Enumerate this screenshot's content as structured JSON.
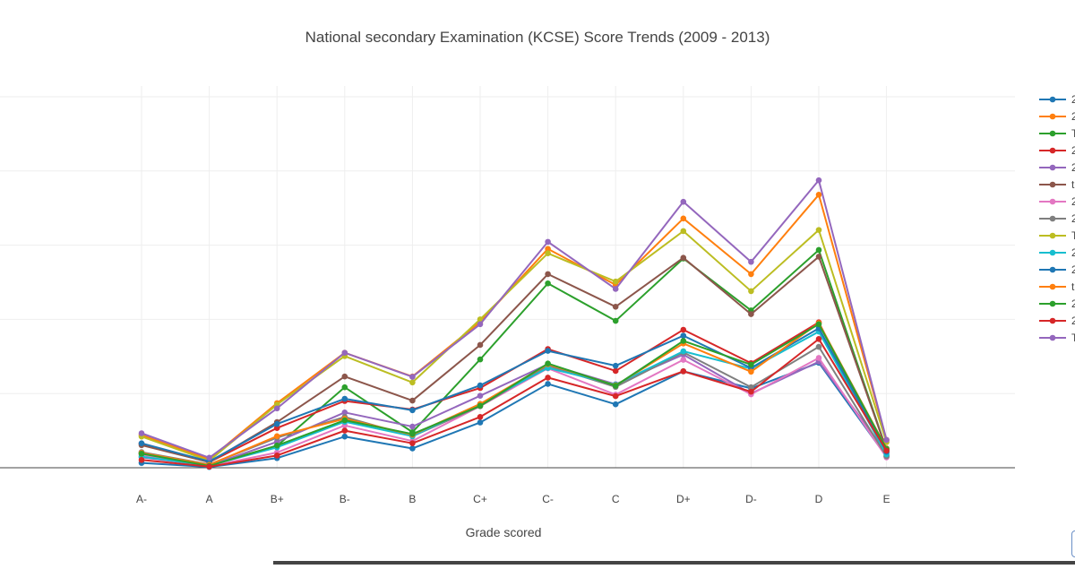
{
  "chart_data": {
    "type": "line",
    "title": "National secondary Examination (KCSE) Score Trends (2009 - 2013)",
    "xlabel": "Grade scored",
    "ylabel": "",
    "categories": [
      "A-",
      "A",
      "B+",
      "B-",
      "B",
      "C+",
      "C-",
      "C",
      "D+",
      "D-",
      "D",
      "E"
    ],
    "ylim": [
      0,
      1
    ],
    "grid": true,
    "legend_position": "right (clipped)",
    "series": [
      {
        "name": "2",
        "color": "#1f77b4",
        "values": [
          0.013,
          0.002,
          0.026,
          0.084,
          0.052,
          0.122,
          0.226,
          0.171,
          0.26,
          0.214,
          0.283,
          0.03
        ]
      },
      {
        "name": "2",
        "color": "#ff7f0e",
        "values": [
          0.088,
          0.023,
          0.174,
          0.31,
          0.246,
          0.393,
          0.59,
          0.493,
          0.672,
          0.522,
          0.736,
          0.075
        ]
      },
      {
        "name": "T",
        "color": "#2ca02c",
        "values": [
          0.039,
          0.008,
          0.059,
          0.217,
          0.096,
          0.292,
          0.497,
          0.396,
          0.564,
          0.424,
          0.587,
          0.048
        ]
      },
      {
        "name": "2",
        "color": "#d62728",
        "values": [
          0.065,
          0.015,
          0.107,
          0.18,
          0.157,
          0.215,
          0.32,
          0.261,
          0.372,
          0.282,
          0.392,
          0.033
        ]
      },
      {
        "name": "2",
        "color": "#9467bd",
        "values": [
          0.028,
          0.006,
          0.07,
          0.149,
          0.111,
          0.194,
          0.279,
          0.225,
          0.305,
          0.2,
          0.286,
          0.041
        ]
      },
      {
        "name": "t",
        "color": "#8c564b",
        "values": [
          0.061,
          0.015,
          0.123,
          0.246,
          0.181,
          0.331,
          0.522,
          0.434,
          0.566,
          0.414,
          0.569,
          0.048
        ]
      },
      {
        "name": "2",
        "color": "#e377c2",
        "values": [
          0.035,
          0.004,
          0.041,
          0.114,
          0.072,
          0.166,
          0.268,
          0.197,
          0.291,
          0.198,
          0.296,
          0.028
        ]
      },
      {
        "name": "2",
        "color": "#7f7f7f",
        "values": [
          0.042,
          0.009,
          0.081,
          0.137,
          0.085,
          0.166,
          0.275,
          0.218,
          0.311,
          0.217,
          0.326,
          0.031
        ]
      },
      {
        "name": "T",
        "color": "#bcbd22",
        "values": [
          0.084,
          0.019,
          0.17,
          0.301,
          0.23,
          0.4,
          0.578,
          0.502,
          0.638,
          0.476,
          0.641,
          0.069
        ]
      },
      {
        "name": "2",
        "color": "#17becf",
        "values": [
          0.03,
          0.006,
          0.055,
          0.124,
          0.085,
          0.172,
          0.269,
          0.224,
          0.314,
          0.267,
          0.367,
          0.036
        ]
      },
      {
        "name": "2",
        "color": "#1f77b4",
        "values": [
          0.066,
          0.017,
          0.118,
          0.186,
          0.155,
          0.222,
          0.315,
          0.275,
          0.356,
          0.269,
          0.376,
          0.043
        ]
      },
      {
        "name": "t",
        "color": "#ff7f0e",
        "values": [
          0.04,
          0.008,
          0.085,
          0.132,
          0.089,
          0.172,
          0.279,
          0.222,
          0.335,
          0.259,
          0.39,
          0.052
        ]
      },
      {
        "name": "2",
        "color": "#2ca02c",
        "values": [
          0.038,
          0.005,
          0.06,
          0.128,
          0.091,
          0.167,
          0.281,
          0.221,
          0.342,
          0.278,
          0.387,
          0.051
        ]
      },
      {
        "name": "2",
        "color": "#d62728",
        "values": [
          0.021,
          0.003,
          0.033,
          0.1,
          0.066,
          0.137,
          0.243,
          0.193,
          0.26,
          0.205,
          0.347,
          0.046
        ]
      },
      {
        "name": "T",
        "color": "#9467bd",
        "values": [
          0.093,
          0.027,
          0.16,
          0.31,
          0.245,
          0.387,
          0.609,
          0.482,
          0.717,
          0.555,
          0.775,
          0.075
        ]
      }
    ]
  }
}
